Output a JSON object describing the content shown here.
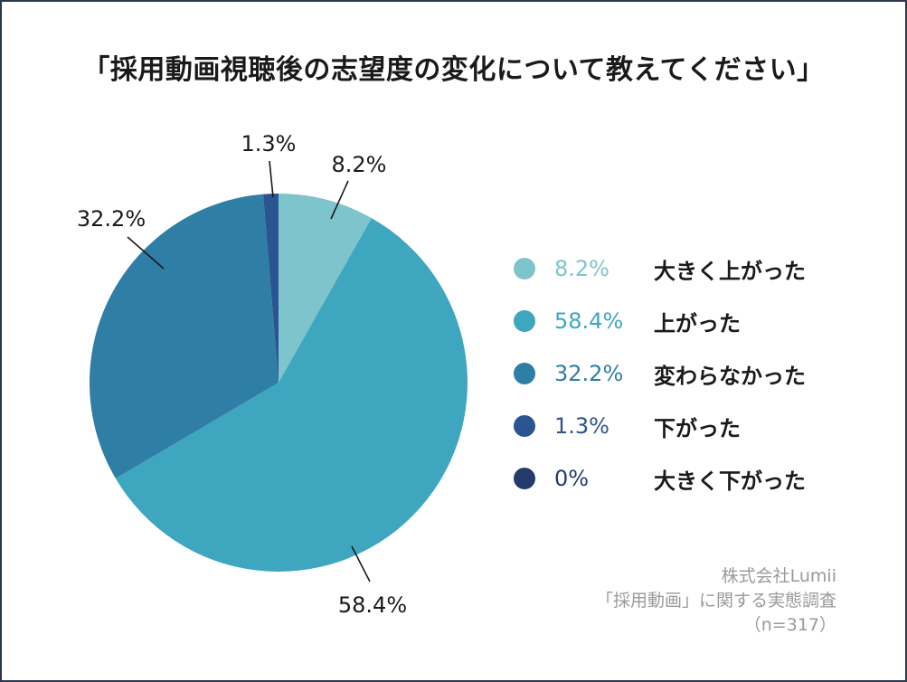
{
  "chart_data": {
    "type": "pie",
    "title": "「採用動画視聴後の志望度の変化について教えてください」",
    "slices": [
      {
        "label": "大きく上がった",
        "value": 8.2,
        "value_label": "8.2%",
        "color": "#7ec4cc"
      },
      {
        "label": "上がった",
        "value": 58.4,
        "value_label": "58.4%",
        "color": "#3fa6c0"
      },
      {
        "label": "変わらなかった",
        "value": 32.2,
        "value_label": "32.2%",
        "color": "#2f7ea6"
      },
      {
        "label": "下がった",
        "value": 1.3,
        "value_label": "1.3%",
        "color": "#2a5591"
      },
      {
        "label": "大きく下がった",
        "value": 0,
        "value_label": "0%",
        "color": "#253a6b"
      }
    ],
    "legend_position": "right",
    "start": "12 o'clock, clockwise"
  },
  "source": {
    "company": "株式会社Lumii",
    "survey": "「採用動画」に関する実態調査",
    "sample": "（n=317）"
  }
}
